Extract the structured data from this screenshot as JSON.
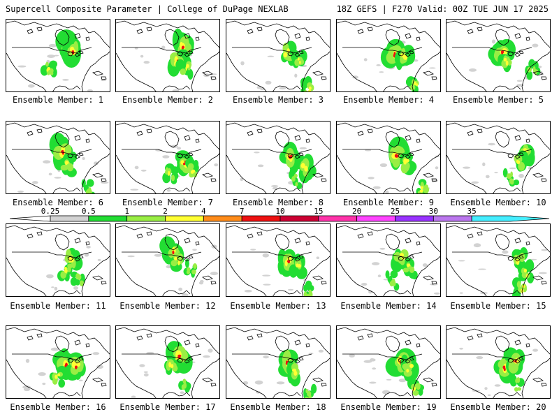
{
  "header": {
    "left": "Supercell Composite Parameter | College of DuPage NEXLAB",
    "right": "18Z GEFS | F270 Valid: 00Z TUE JUN 17 2025"
  },
  "member_label_prefix": "Ensemble Member: ",
  "members": [
    1,
    2,
    3,
    4,
    5,
    6,
    7,
    8,
    9,
    10,
    11,
    12,
    13,
    14,
    15,
    16,
    17,
    18,
    19,
    20
  ],
  "colorbar": {
    "ticks": [
      "0.25",
      "0.5",
      "1",
      "2",
      "4",
      "7",
      "10",
      "15",
      "20",
      "25",
      "30",
      "35"
    ],
    "colors": [
      "#d2d2d2",
      "#22dd33",
      "#99ee44",
      "#ffff33",
      "#ff8c1a",
      "#ee1111",
      "#cc0033",
      "#ff33aa",
      "#ff44ff",
      "#9933ff",
      "#bb77ee",
      "#44eeff"
    ],
    "under_color": "#ffffff"
  },
  "colors": {
    "panel_border": "#000000",
    "map_lines": "#000000",
    "light_fill": "#d2d2d2",
    "low_fill": "#22dd33",
    "mid_fill": "#99ee44",
    "high_fill": "#ffff33",
    "extreme_fill": "#ee1111"
  }
}
